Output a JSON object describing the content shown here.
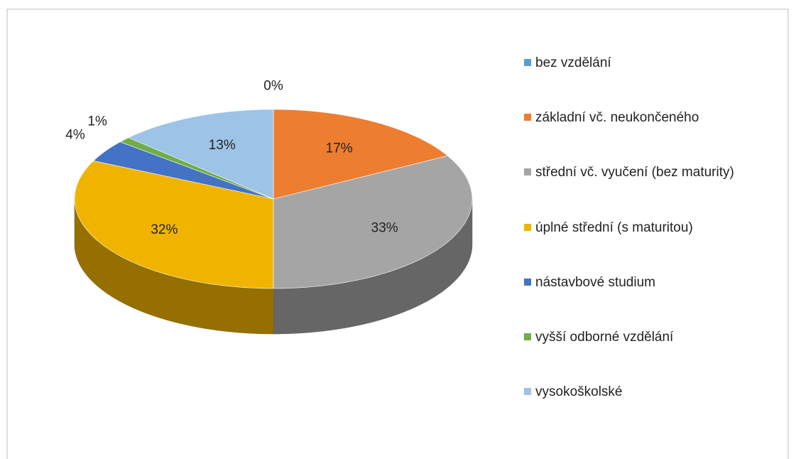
{
  "chart_data": {
    "type": "pie",
    "categories": [
      "bez vzdělání",
      "základní vč. neukončeného",
      "střední vč. vyučení (bez maturity)",
      "úplné střední (s maturitou)",
      "nástavbové studium",
      "vyšší odborné vzdělání",
      "vysokoškolské"
    ],
    "values": [
      0,
      17,
      33,
      32,
      4,
      1,
      13
    ],
    "value_labels": [
      "0%",
      "17%",
      "33%",
      "32%",
      "4%",
      "1%",
      "13%"
    ],
    "colors": [
      "#5b9bd5",
      "#ed7d31",
      "#a5a5a5",
      "#f0b400",
      "#4472c4",
      "#70ad47",
      "#9dc3e6"
    ],
    "legend": "right"
  }
}
